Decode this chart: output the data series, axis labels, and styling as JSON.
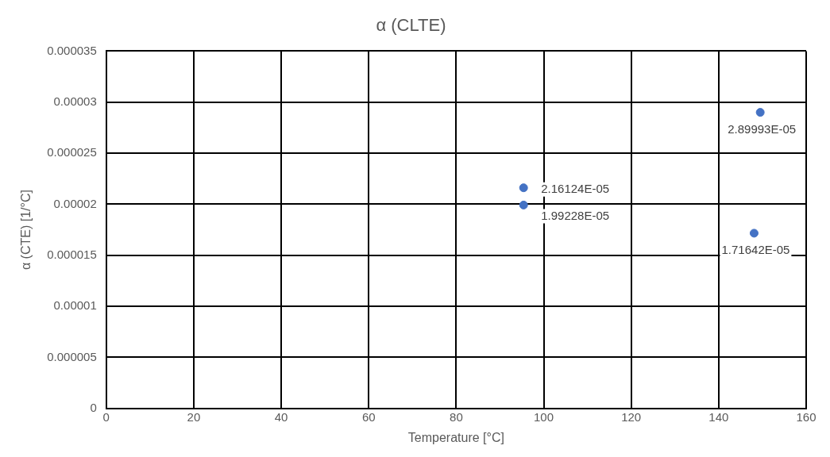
{
  "chart_data": {
    "type": "scatter",
    "title": "α (CLTE)",
    "xlabel": "Temperature [°C]",
    "ylabel": "α (CTE) [1/°C]",
    "x": [
      95.4,
      95.4,
      149.5,
      148.1
    ],
    "values": [
      2.16124e-05,
      1.99228e-05,
      2.89993e-05,
      1.71642e-05
    ],
    "value_labels": [
      "2.16124E-05",
      "1.99228E-05",
      "2.89993E-05",
      "1.71642E-05"
    ],
    "color": "#4472c4",
    "marker": "circle",
    "xlim": [
      0,
      160
    ],
    "xticks": [
      0,
      20,
      40,
      60,
      80,
      100,
      120,
      140,
      160
    ],
    "ylim": [
      0,
      3.5e-05
    ],
    "yticks": [
      0,
      {
        "value": 5e-06,
        "label": "0.000005"
      },
      {
        "value": 1e-05,
        "label": "0.00001"
      },
      {
        "value": 1.5e-05,
        "label": "0.000015"
      },
      {
        "value": 2e-05,
        "label": "0.00002"
      },
      {
        "value": 2.5e-05,
        "label": "0.000025"
      },
      {
        "value": 3e-05,
        "label": "0.00003"
      },
      {
        "value": 3.5e-05,
        "label": "0.000035"
      }
    ],
    "grid": true,
    "legend": false
  }
}
